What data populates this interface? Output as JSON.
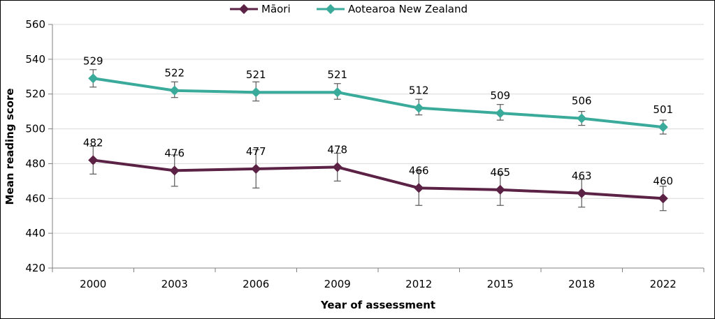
{
  "chart_data": {
    "type": "line",
    "title": "",
    "xlabel": "Year of assessment",
    "ylabel": "Mean reading score",
    "ylim": [
      420,
      560
    ],
    "yticks": [
      420,
      440,
      460,
      480,
      500,
      520,
      540,
      560
    ],
    "grid": true,
    "legend_position": "top",
    "categories": [
      "2000",
      "2003",
      "2006",
      "2009",
      "2012",
      "2015",
      "2018",
      "2022"
    ],
    "series": [
      {
        "name": "Māori",
        "color": "#5b2245",
        "values": [
          482,
          476,
          477,
          478,
          466,
          465,
          463,
          460
        ],
        "error_low": [
          474,
          467,
          466,
          470,
          456,
          456,
          455,
          453
        ],
        "error_high": [
          490,
          485,
          488,
          486,
          476,
          474,
          471,
          467
        ]
      },
      {
        "name": "Aotearoa New Zealand",
        "color": "#3aaa9b",
        "values": [
          529,
          522,
          521,
          521,
          512,
          509,
          506,
          501
        ],
        "error_low": [
          524,
          518,
          516,
          517,
          508,
          505,
          502,
          497
        ],
        "error_high": [
          534,
          527,
          527,
          526,
          517,
          514,
          510,
          505
        ]
      }
    ]
  }
}
